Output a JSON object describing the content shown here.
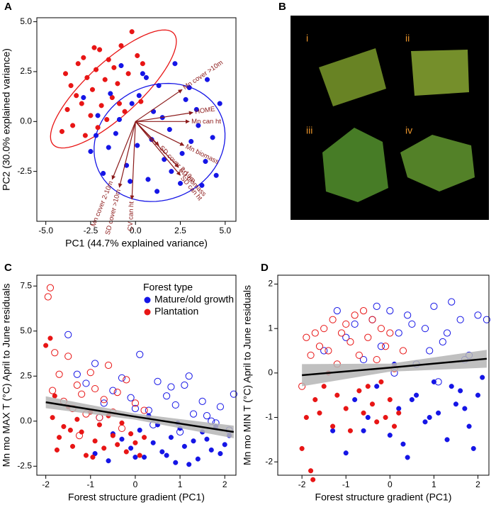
{
  "chart_data": [
    {
      "type": "biplot",
      "panel_label": "A",
      "xlabel": "PC1 (44.7% explained variance)",
      "ylabel": "PC2 (30.0% explained variance)",
      "xlim": [
        -5.5,
        5.6
      ],
      "ylim": [
        -5.0,
        5.2
      ],
      "xticks": [
        {
          "value": -5,
          "label": "-5.0"
        },
        {
          "value": -2.5,
          "label": "-2.5"
        },
        {
          "value": 0,
          "label": "0.0"
        },
        {
          "value": 2.5,
          "label": "2.5"
        },
        {
          "value": 5,
          "label": "5.0"
        }
      ],
      "yticks": [
        {
          "value": -2.5,
          "label": "-2.5"
        },
        {
          "value": 0,
          "label": "0.0"
        },
        {
          "value": 2.5,
          "label": "2.5"
        },
        {
          "value": 5,
          "label": "5.0"
        }
      ],
      "series": [
        {
          "color": "#e81515",
          "marker": "filled",
          "x": [
            -4.1,
            -3.8,
            -3.6,
            -3.5,
            -3.2,
            -3.0,
            -2.9,
            -2.7,
            -2.5,
            -2.4,
            -2.2,
            -2.0,
            -1.9,
            -1.7,
            -1.5,
            -1.3,
            -1.2,
            -1.0,
            -0.8,
            -0.6,
            -0.4,
            -0.2,
            0.1,
            0.3,
            -3.3,
            -2.8,
            -2.1,
            -1.6,
            -0.9,
            0.4,
            -3.9,
            -2.3
          ],
          "values": [
            -0.5,
            0.6,
            1.8,
            -0.2,
            2.9,
            0.9,
            3.2,
            2.2,
            0.3,
            1.6,
            2.6,
            3.6,
            0.8,
            2.1,
            3.1,
            1.2,
            2.7,
            1.9,
            3.8,
            0.5,
            2.4,
            4.5,
            3.3,
            1.0,
            1.3,
            -0.7,
            -0.3,
            0.1,
            0.9,
            2.9,
            2.4,
            3.7
          ]
        },
        {
          "color": "#1515e6",
          "marker": "filled",
          "x": [
            -2.9,
            -2.5,
            -2.1,
            -1.8,
            -1.4,
            -1.1,
            -0.8,
            -0.5,
            -0.2,
            0.1,
            0.4,
            0.7,
            1.0,
            1.3,
            1.6,
            1.9,
            2.2,
            2.5,
            2.8,
            3.1,
            3.4,
            3.7,
            4.0,
            4.3,
            4.7,
            -1.5,
            -0.3,
            0.9,
            2.0,
            3.0,
            3.9,
            1.5,
            0.2,
            -2.2,
            2.6,
            4.5,
            -0.9,
            1.2,
            3.5,
            0.6
          ],
          "values": [
            1.2,
            -1.5,
            0.3,
            -2.6,
            1.4,
            -0.6,
            2.8,
            -2.2,
            0.9,
            -1.2,
            2.4,
            -2.9,
            0.5,
            1.8,
            -1.9,
            -0.4,
            2.9,
            -3.1,
            1.1,
            -1.0,
            0.6,
            -3.2,
            2.1,
            -0.8,
            0.9,
            -1.3,
            -3.0,
            -0.9,
            -2.5,
            1.7,
            -2.0,
            0.2,
            1.3,
            -0.7,
            -1.6,
            -2.7,
            0.1,
            -3.5,
            -0.2,
            2.2
          ]
        }
      ],
      "ellipses": [
        {
          "color": "#e81515",
          "center": [
            -1.23,
            1.63
          ],
          "rx": 4.37,
          "ry": 1.4,
          "angle": 39
        },
        {
          "color": "#1515e6",
          "center": [
            1.34,
            -1.05
          ],
          "rx": 3.7,
          "ry": 2.9,
          "angle": 15
        }
      ],
      "arrows": {
        "color": "#8b1a1a",
        "labels": [
          "Mn cover >10m",
          "HOME",
          "Mn can ht",
          "Mn biomass",
          "SD biomass",
          "SD can ht",
          "SD cover 2-10m",
          "Mn cover 2-10m",
          "SD cover >10m",
          "CV can ht"
        ],
        "x": [
          2.6,
          3.2,
          3.0,
          2.7,
          2.4,
          2.5,
          1.3,
          -1.3,
          -0.9,
          -0.2
        ],
        "y": [
          1.6,
          0.45,
          0.0,
          -1.2,
          -2.3,
          -2.7,
          -1.2,
          -2.9,
          -3.3,
          -3.9
        ]
      }
    },
    {
      "type": "image_grid",
      "panel_label": "B",
      "tiles": [
        "i",
        "ii",
        "iii",
        "iv"
      ]
    },
    {
      "type": "scatter",
      "panel_label": "C",
      "xlabel": "Forest structure gradient (PC1)",
      "ylabel": "Mn mo MAX T (°C) April to June residuals",
      "xlim": [
        -2.2,
        2.25
      ],
      "ylim": [
        -3.0,
        8.1
      ],
      "xticks": [
        -2,
        -1,
        0,
        1,
        2
      ],
      "yticks": [
        -2.5,
        {
          "value": 0,
          "label": "0.0"
        },
        2.5,
        {
          "value": 5,
          "label": "5.0"
        },
        7.5
      ],
      "legend_title": "Forest type",
      "legend": "top-right",
      "series": [
        {
          "name": "Mature/old growth",
          "color": "#1515e6",
          "marker": "filled",
          "x": [
            -0.9,
            -0.6,
            -0.3,
            -0.1,
            0.1,
            0.2,
            0.4,
            0.5,
            0.6,
            0.8,
            0.9,
            1.0,
            1.1,
            1.3,
            1.4,
            1.5,
            1.7,
            1.8,
            2.0,
            2.1,
            0.3,
            0.7,
            1.2,
            1.6,
            -0.5,
            0.0,
            1.9,
            0.95
          ],
          "values": [
            -1.8,
            -2.2,
            -1.0,
            -1.5,
            -0.5,
            -2.0,
            -1.2,
            -0.2,
            -1.7,
            -0.9,
            -2.3,
            -0.4,
            -1.4,
            -1.1,
            -2.1,
            -0.6,
            -1.6,
            -0.3,
            -1.3,
            -0.8,
            0.3,
            -1.9,
            -2.4,
            -1.0,
            -0.7,
            -2.0,
            -1.8,
            -0.1
          ]
        },
        {
          "name": "Plantation",
          "color": "#e81515",
          "marker": "filled",
          "x": [
            -2.0,
            -1.9,
            -1.85,
            -1.8,
            -1.7,
            -1.6,
            -1.5,
            -1.4,
            -1.3,
            -1.2,
            -1.1,
            -1.0,
            -0.9,
            -0.8,
            -0.7,
            -0.6,
            -0.5,
            -0.4,
            -0.3,
            -0.2,
            -0.1,
            0.0,
            0.1,
            0.2,
            -1.75,
            -1.45,
            -0.95
          ],
          "values": [
            4.2,
            4.6,
            0.2,
            1.4,
            -0.9,
            -0.3,
            0.8,
            -1.4,
            0.1,
            -0.6,
            -1.9,
            0.5,
            -1.1,
            -0.2,
            -1.5,
            0.3,
            -0.8,
            -1.3,
            -0.1,
            -1.7,
            -0.7,
            -1.2,
            -1.9,
            -0.9,
            -1.6,
            -0.5,
            -2.0
          ]
        },
        {
          "color": "#1515e6",
          "marker": "open",
          "x": [
            -1.5,
            -1.3,
            -1.1,
            -0.9,
            -0.7,
            -0.5,
            -0.3,
            -0.1,
            0.1,
            0.3,
            0.5,
            0.7,
            0.9,
            1.1,
            1.3,
            1.5,
            1.7,
            1.9,
            2.1,
            2.2,
            0.4,
            0.8,
            1.2,
            1.6,
            -0.8,
            0.0,
            1.0,
            1.8
          ],
          "values": [
            4.8,
            2.6,
            2.1,
            3.2,
            1.0,
            1.7,
            2.4,
            1.3,
            3.7,
            0.6,
            2.2,
            1.4,
            0.9,
            2.0,
            0.4,
            1.1,
            0.0,
            0.8,
            -0.5,
            1.5,
            -0.2,
            1.9,
            2.5,
            0.3,
            0.2,
            0.7,
            -0.6,
            -0.1
          ]
        },
        {
          "color": "#e81515",
          "marker": "open",
          "x": [
            -1.95,
            -1.9,
            -1.8,
            -1.7,
            -1.6,
            -1.5,
            -1.4,
            -1.3,
            -1.2,
            -1.1,
            -1.0,
            -0.9,
            -0.8,
            -0.7,
            -0.6,
            -0.5,
            -0.4,
            -0.3,
            -0.2,
            0.0,
            0.2,
            -1.85,
            -1.25
          ],
          "values": [
            6.9,
            7.4,
            3.8,
            2.6,
            1.1,
            3.6,
            0.7,
            2.0,
            1.5,
            0.4,
            2.7,
            1.8,
            0.2,
            1.2,
            3.1,
            0.5,
            1.6,
            -0.4,
            2.3,
            1.0,
            0.6,
            1.7,
            -0.8
          ]
        }
      ],
      "fit": {
        "x": [
          -2,
          0,
          2.2
        ],
        "values": [
          1.05,
          0.25,
          -0.6
        ],
        "lower": [
          0.72,
          0.08,
          -0.95
        ],
        "upper": [
          1.38,
          0.42,
          -0.25
        ],
        "color": "#000000",
        "band_color": "#b5b5b5"
      }
    },
    {
      "type": "scatter",
      "panel_label": "D",
      "xlabel": "Forest structure gradient (PC1)",
      "ylabel": "Mn mo MIN T (°C) April to June residuals",
      "xlim": [
        -2.55,
        2.25
      ],
      "ylim": [
        -2.3,
        2.2
      ],
      "xticks": [
        -2,
        -1,
        0,
        1,
        2
      ],
      "yticks": [
        -2,
        -1,
        0,
        1,
        2
      ],
      "series": [
        {
          "color": "#1515e6",
          "marker": "filled",
          "x": [
            -1.3,
            -1.0,
            -0.8,
            -0.5,
            -0.3,
            0.0,
            0.2,
            0.4,
            0.6,
            0.8,
            1.0,
            1.1,
            1.3,
            1.5,
            1.6,
            1.8,
            1.9,
            2.1,
            0.1,
            0.5,
            0.9,
            1.4,
            -0.6,
            1.7,
            2.0,
            0.3
          ],
          "values": [
            -1.3,
            -1.8,
            -0.6,
            -1.0,
            -0.3,
            -1.4,
            -0.8,
            -1.9,
            -0.5,
            -1.1,
            -0.2,
            -0.9,
            -1.5,
            -0.7,
            -0.4,
            -1.2,
            -1.7,
            -0.1,
            0.2,
            -0.6,
            -1.0,
            -0.3,
            -1.3,
            -0.8,
            -0.5,
            -1.6
          ]
        },
        {
          "color": "#e81515",
          "marker": "filled",
          "x": [
            -2.0,
            -1.9,
            -1.8,
            -1.75,
            -1.7,
            -1.6,
            -1.5,
            -1.3,
            -1.2,
            -1.0,
            -0.9,
            -0.7,
            -0.6,
            -0.4,
            -0.3,
            -0.2,
            -0.1,
            0.0,
            0.1,
            0.2,
            -1.4,
            -0.5
          ],
          "values": [
            -1.7,
            -1.0,
            -2.2,
            -2.4,
            -0.6,
            -0.9,
            -0.3,
            -1.2,
            -0.5,
            -0.8,
            -1.3,
            -0.4,
            -0.9,
            -0.7,
            -1.1,
            -0.2,
            -1.0,
            -0.6,
            -1.2,
            -0.9,
            0.0,
            -0.3
          ]
        },
        {
          "color": "#1515e6",
          "marker": "open",
          "x": [
            -1.5,
            -1.2,
            -1.0,
            -0.8,
            -0.6,
            -0.4,
            -0.2,
            0.0,
            0.2,
            0.4,
            0.6,
            0.8,
            1.0,
            1.2,
            1.4,
            1.6,
            1.8,
            2.0,
            2.2,
            0.1,
            0.5,
            0.9,
            1.3,
            1.7,
            -0.3,
            1.1
          ],
          "values": [
            0.5,
            1.4,
            0.8,
            1.1,
            0.3,
            1.2,
            0.6,
            1.4,
            0.9,
            1.3,
            0.2,
            1.0,
            1.5,
            0.7,
            1.6,
            1.2,
            0.4,
            1.3,
            1.2,
            0.0,
            1.1,
            0.5,
            0.9,
            0.3,
            1.5,
            -0.2
          ]
        },
        {
          "color": "#e81515",
          "marker": "open",
          "x": [
            -2.0,
            -1.9,
            -1.8,
            -1.7,
            -1.6,
            -1.5,
            -1.4,
            -1.3,
            -1.2,
            -1.1,
            -1.0,
            -0.9,
            -0.8,
            -0.7,
            -0.6,
            -0.5,
            -0.4,
            -0.3,
            -0.2,
            -0.1,
            0.0,
            0.1,
            0.3
          ],
          "values": [
            -0.3,
            0.8,
            0.4,
            0.9,
            0.6,
            1.0,
            0.5,
            1.2,
            0.2,
            0.9,
            1.1,
            0.7,
            1.3,
            0.4,
            1.4,
            0.8,
            1.2,
            0.3,
            1.0,
            0.6,
            0.9,
            0.1,
            0.5
          ]
        }
      ],
      "fit": {
        "x": [
          -2,
          0,
          2.2
        ],
        "values": [
          -0.05,
          0.12,
          0.32
        ],
        "lower": [
          -0.3,
          0.03,
          0.12
        ],
        "upper": [
          0.2,
          0.21,
          0.52
        ],
        "color": "#000000",
        "band_color": "#b5b5b5"
      }
    }
  ]
}
